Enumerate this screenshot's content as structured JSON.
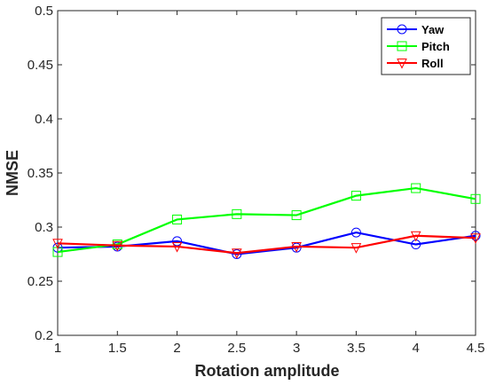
{
  "chart_data": {
    "type": "line",
    "title": "",
    "xlabel": "Rotation amplitude",
    "ylabel": "NMSE",
    "xlim": [
      1,
      4.5
    ],
    "ylim": [
      0.2,
      0.5
    ],
    "xticks": [
      1,
      1.5,
      2,
      2.5,
      3,
      3.5,
      4,
      4.5
    ],
    "xtick_labels": [
      "1",
      "1.5",
      "2",
      "2.5",
      "3",
      "3.5",
      "4",
      "4.5"
    ],
    "yticks": [
      0.2,
      0.25,
      0.3,
      0.35,
      0.4,
      0.45,
      0.5
    ],
    "ytick_labels": [
      "0.2",
      "0.25",
      "0.3",
      "0.35",
      "0.4",
      "0.45",
      "0.5"
    ],
    "grid": false,
    "legend_position": "top-right",
    "x": [
      1,
      1.5,
      2,
      2.5,
      3,
      3.5,
      4,
      4.5
    ],
    "series": [
      {
        "name": "Yaw",
        "color": "#0000ff",
        "marker": "circle",
        "values": [
          0.281,
          0.282,
          0.287,
          0.275,
          0.281,
          0.295,
          0.284,
          0.292
        ]
      },
      {
        "name": "Pitch",
        "color": "#00ff00",
        "marker": "square",
        "values": [
          0.277,
          0.284,
          0.307,
          0.312,
          0.311,
          0.329,
          0.336,
          0.326
        ]
      },
      {
        "name": "Roll",
        "color": "#ff0000",
        "marker": "triangle-down",
        "values": [
          0.285,
          0.283,
          0.282,
          0.276,
          0.282,
          0.281,
          0.292,
          0.29
        ]
      }
    ]
  }
}
